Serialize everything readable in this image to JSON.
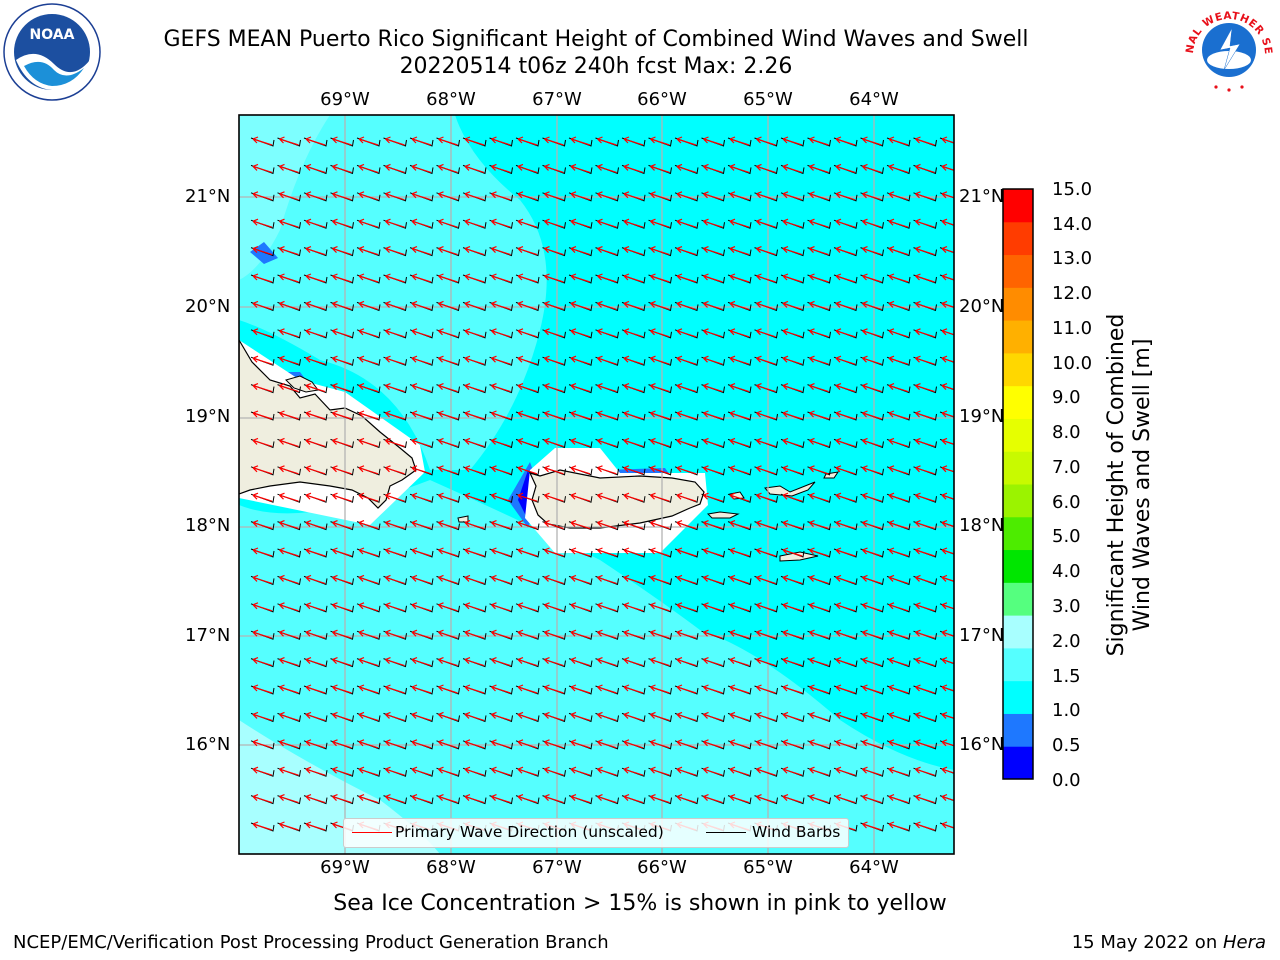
{
  "title": {
    "line1": "GEFS MEAN Puerto Rico Significant Height of Combined Wind Waves and Swell",
    "line2": "20220514 t06z 240h fcst   Max: 2.26"
  },
  "logos": {
    "noaa_text": "NOAA",
    "nws_text": "NATIONAL WEATHER SERVICE"
  },
  "map": {
    "lon_labels": [
      "69°W",
      "68°W",
      "67°W",
      "66°W",
      "65°W",
      "64°W"
    ],
    "lat_labels": [
      "21°N",
      "20°N",
      "19°N",
      "18°N",
      "17°N",
      "16°N"
    ],
    "colors": {
      "land": "#efeedf",
      "ocean_main": "#00ffff",
      "ocean_light": "#55ffff",
      "ocean_pale": "#a8ffff",
      "ocean_blue": "#1e78ff",
      "ocean_dark": "#0000ff",
      "arrow": "#ff0000",
      "barb": "#000000"
    }
  },
  "legend": {
    "wave_direction": "Primary Wave Direction (unscaled)",
    "wind_barbs": "Wind Barbs"
  },
  "colorbar": {
    "title": "Significant Height of Combined\nWind Waves and Swell [m]",
    "ticks": [
      "15.0",
      "14.0",
      "13.0",
      "12.0",
      "11.0",
      "10.0",
      "9.0",
      "8.0",
      "7.0",
      "6.0",
      "5.0",
      "4.0",
      "3.0",
      "2.0",
      "1.5",
      "1.0",
      "0.5",
      "0.0"
    ],
    "colors": [
      "#0000ff",
      "#1e78ff",
      "#00ffff",
      "#55ffff",
      "#a8ffff",
      "#55ff7f",
      "#00e600",
      "#4dec00",
      "#9bf300",
      "#c8fa00",
      "#e6ff00",
      "#ffff00",
      "#ffd700",
      "#ffb000",
      "#ff8c00",
      "#ff6400",
      "#ff3c00",
      "#ff0000"
    ]
  },
  "sea_ice_note": "Sea Ice Concentration > 15% is shown in pink to yellow",
  "footer": {
    "left": "NCEP/EMC/Verification Post Processing Product Generation Branch",
    "right_date": "15 May 2022 on ",
    "right_host": "Hera"
  }
}
